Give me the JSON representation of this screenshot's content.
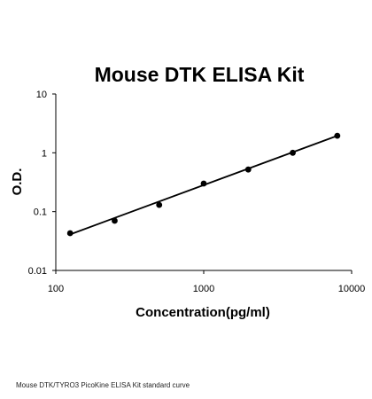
{
  "chart_data": {
    "type": "scatter",
    "title": "Mouse DTK ELISA Kit",
    "xlabel": "Concentration(pg/ml)",
    "ylabel": "O.D.",
    "x_scale": "log",
    "y_scale": "log",
    "xlim": [
      100,
      10000
    ],
    "ylim": [
      0.01,
      10
    ],
    "x_ticks": [
      "100",
      "1000",
      "10000"
    ],
    "y_ticks": [
      "0.01",
      "0.1",
      "1",
      "10"
    ],
    "grid": false,
    "legend": "none",
    "series": [
      {
        "x": [
          125,
          250,
          500,
          1000,
          2000,
          4000,
          8000
        ],
        "y": [
          0.043,
          0.07,
          0.13,
          0.3,
          0.52,
          1.0,
          1.95
        ]
      }
    ],
    "fit": {
      "type": "line",
      "x": [
        125,
        8000
      ],
      "y": [
        0.041,
        1.95
      ]
    }
  },
  "caption": "Mouse DTK/TYRO3 PicoKine ELISA Kit standard curve",
  "colors": {
    "marks": "#000000",
    "background": "#ffffff"
  }
}
